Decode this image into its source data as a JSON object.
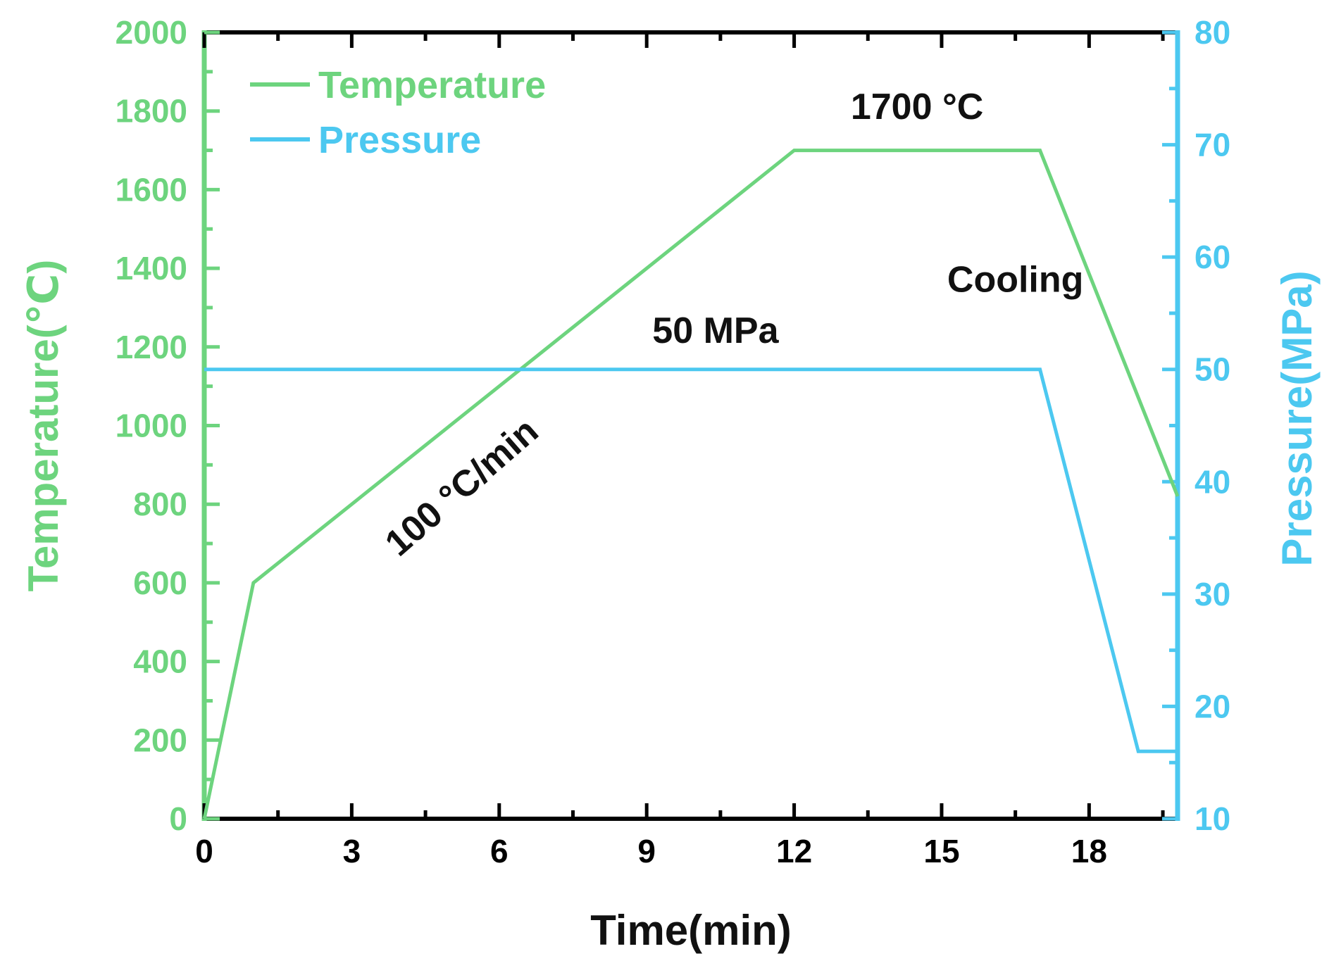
{
  "chart_data": {
    "type": "line",
    "title": "",
    "xlabel": "Time(min)",
    "ylabel_left": "Temperature(℃)",
    "ylabel_right": "Pressure(MPa)",
    "xlim": [
      0,
      19.8
    ],
    "ylim_left": [
      0,
      2000
    ],
    "ylim_right": [
      10,
      80
    ],
    "x_ticks": [
      0,
      3,
      6,
      9,
      12,
      15,
      18
    ],
    "x_tick_labels": [
      "0",
      "3",
      "6",
      "9",
      "12",
      "15",
      "18"
    ],
    "y_left_ticks": [
      0,
      200,
      400,
      600,
      800,
      1000,
      1200,
      1400,
      1600,
      1800,
      2000
    ],
    "y_left_tick_labels": [
      "0",
      "200",
      "400",
      "600",
      "800",
      "1000",
      "1200",
      "1400",
      "1600",
      "1800",
      "2000"
    ],
    "y_right_ticks": [
      10,
      20,
      30,
      40,
      50,
      60,
      70,
      80
    ],
    "y_right_tick_labels": [
      "10",
      "20",
      "30",
      "40",
      "50",
      "60",
      "70",
      "80"
    ],
    "grid": false,
    "legend_position": "top-left",
    "series": [
      {
        "name": "Temperature",
        "axis": "left",
        "color": "#6dd47e",
        "points": [
          [
            0,
            0
          ],
          [
            1,
            600
          ],
          [
            12,
            1700
          ],
          [
            17,
            1700
          ],
          [
            19.8,
            820
          ]
        ]
      },
      {
        "name": "Pressure",
        "axis": "right",
        "color": "#4cc8f0",
        "points": [
          [
            0,
            50
          ],
          [
            17,
            50
          ],
          [
            19,
            16
          ],
          [
            19.8,
            16
          ]
        ]
      }
    ],
    "annotations": [
      {
        "text": "1700 °C",
        "x": 14.5,
        "y_left": 1780
      },
      {
        "text": "Cooling",
        "x": 16.5,
        "y_left": 1340
      },
      {
        "text": "50 MPa",
        "x": 10.4,
        "y_left": 1210
      },
      {
        "text": "100 °C/min",
        "x": 5.4,
        "y_left": 820,
        "rotation_deg": -41
      }
    ]
  },
  "colors": {
    "temperature": "#6dd47e",
    "pressure": "#4cc8f0",
    "frame": "#000000",
    "text": "#111111"
  }
}
